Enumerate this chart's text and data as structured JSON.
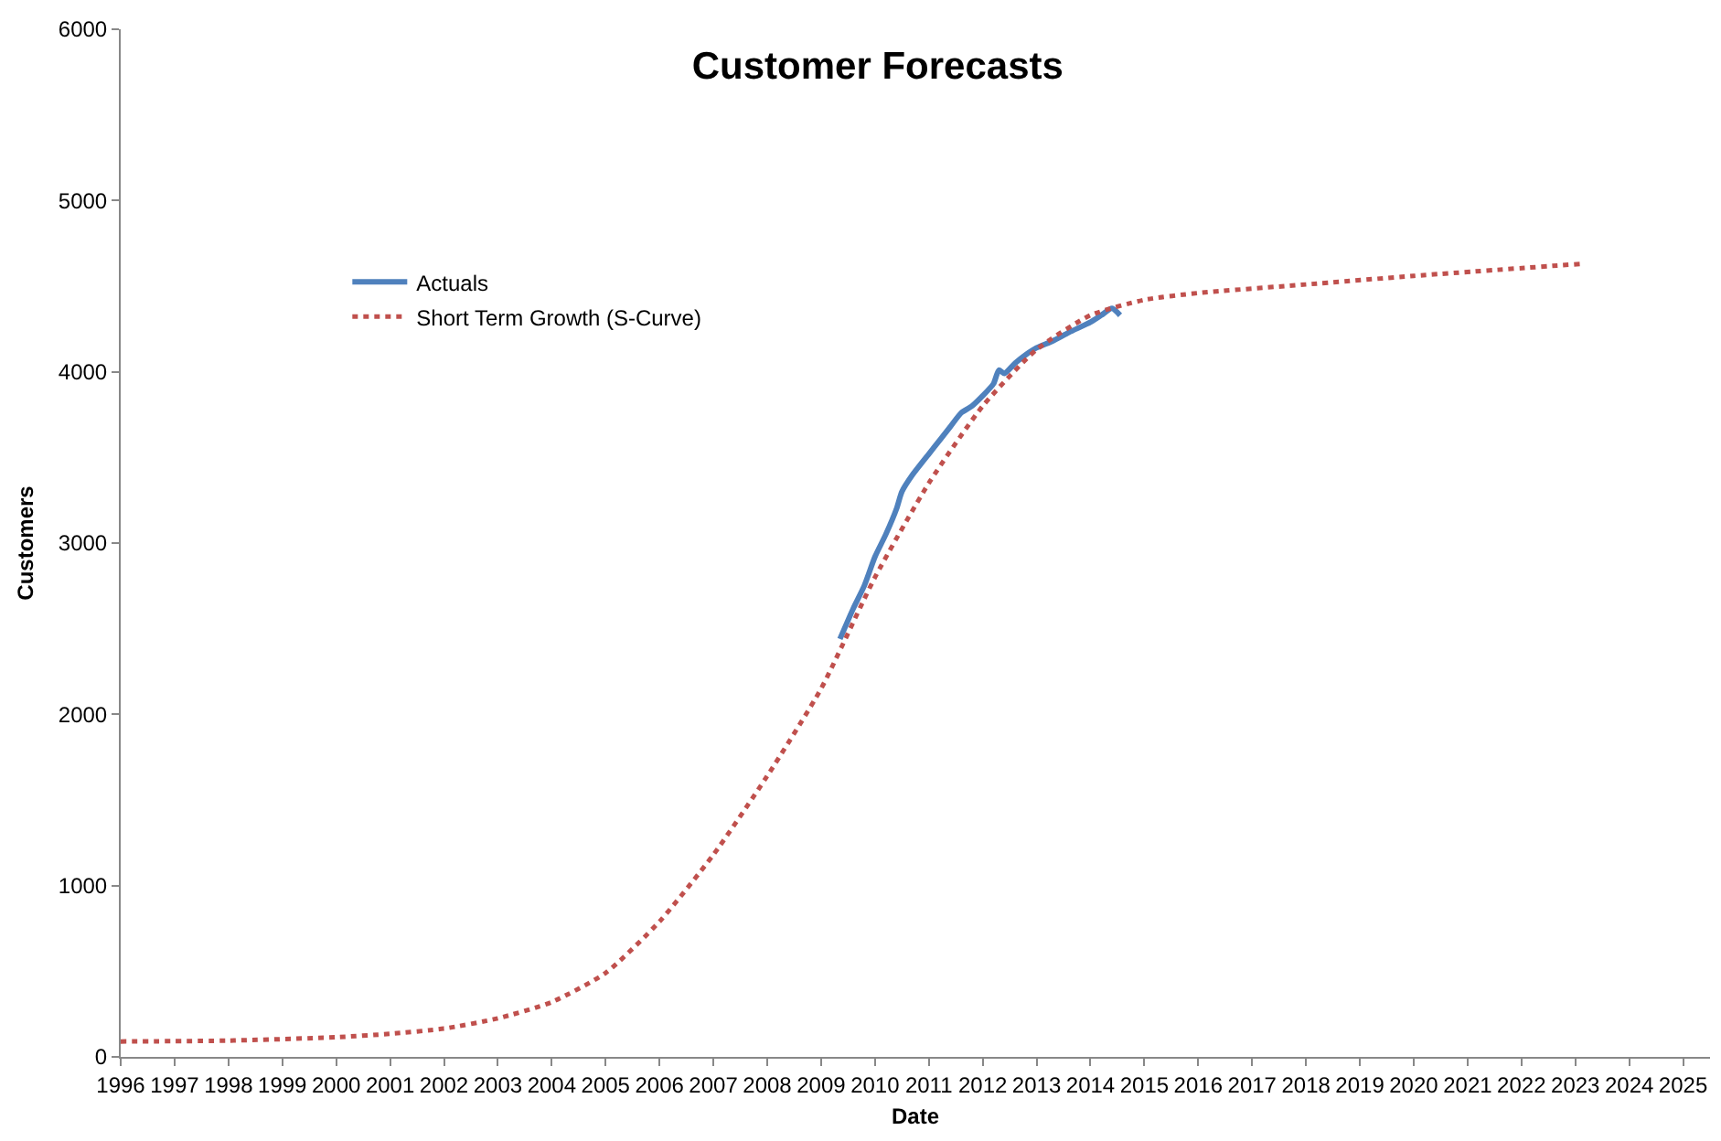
{
  "chart_data": {
    "type": "line",
    "title": "Customer Forecasts",
    "xlabel": "Date",
    "ylabel": "Customers",
    "xlim": [
      1996,
      2025.5
    ],
    "xticks": [
      1996,
      1997,
      1998,
      1999,
      2000,
      2001,
      2002,
      2003,
      2004,
      2005,
      2006,
      2007,
      2008,
      2009,
      2010,
      2011,
      2012,
      2013,
      2014,
      2015,
      2016,
      2017,
      2018,
      2019,
      2020,
      2021,
      2022,
      2023,
      2024,
      2025
    ],
    "ylim": [
      0,
      6000
    ],
    "yticks": [
      0,
      1000,
      2000,
      3000,
      4000,
      5000,
      6000
    ],
    "legend": "top left",
    "marker": "none",
    "series": [
      {
        "name": "Actuals",
        "color": "#4f81bd",
        "line_style": "solid",
        "x": [
          2009.35,
          2009.6,
          2009.8,
          2010,
          2010.2,
          2010.4,
          2010.5,
          2010.7,
          2011,
          2011.2,
          2011.4,
          2011.6,
          2011.8,
          2012,
          2012.2,
          2012.3,
          2012.4,
          2012.6,
          2012.8,
          2013,
          2013.3,
          2013.6,
          2014,
          2014.2,
          2014.4,
          2014.55
        ],
        "values": [
          2440,
          2620,
          2750,
          2920,
          3050,
          3200,
          3300,
          3400,
          3520,
          3600,
          3680,
          3760,
          3800,
          3860,
          3930,
          4010,
          3990,
          4050,
          4100,
          4140,
          4180,
          4230,
          4290,
          4330,
          4370,
          4330
        ]
      },
      {
        "name": "Short Term Growth (S-Curve)",
        "color": "#c0504d",
        "line_style": "dotted",
        "x": [
          1996,
          1998,
          2000,
          2001,
          2002,
          2003,
          2004,
          2005,
          2006,
          2007,
          2008,
          2009,
          2010,
          2011,
          2012,
          2013,
          2014,
          2015,
          2016,
          2018,
          2020,
          2023.1
        ],
        "values": [
          90,
          95,
          115,
          135,
          165,
          225,
          320,
          490,
          790,
          1180,
          1640,
          2150,
          2800,
          3350,
          3800,
          4130,
          4330,
          4420,
          4460,
          4510,
          4560,
          4630
        ]
      }
    ]
  }
}
